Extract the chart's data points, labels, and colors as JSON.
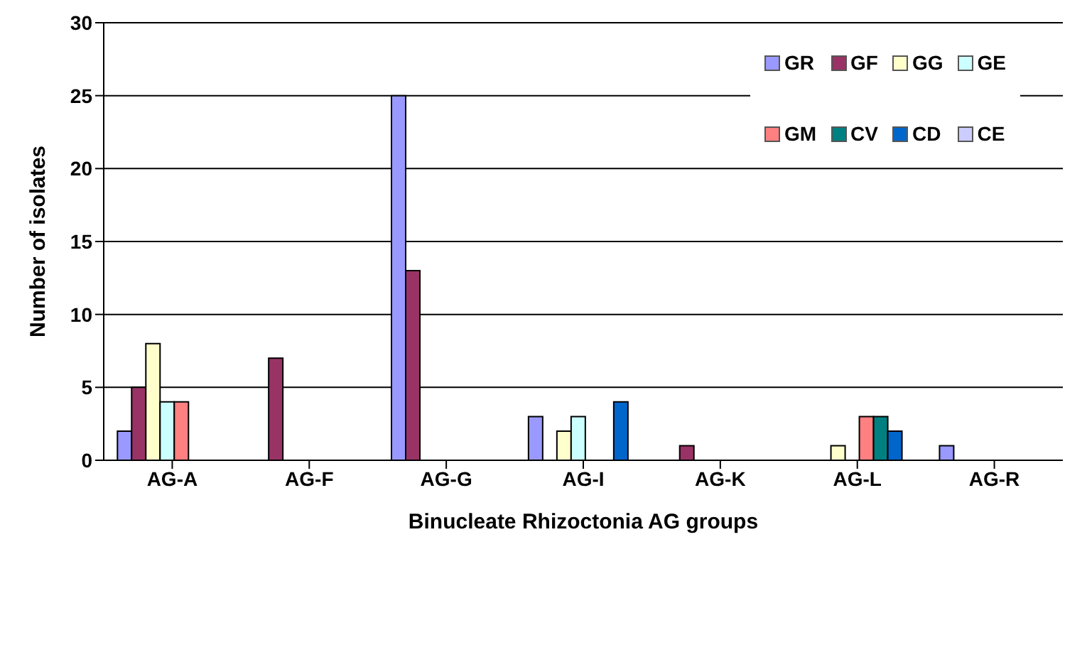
{
  "chart_data": {
    "type": "bar",
    "xlabel": "Binucleate Rhizoctonia AG groups",
    "ylabel": "Number of isolates",
    "categories": [
      "AG-A",
      "AG-F",
      "AG-G",
      "AG-I",
      "AG-K",
      "AG-L",
      "AG-R"
    ],
    "series": [
      {
        "name": "GR",
        "color": "#9999ff",
        "values": [
          2,
          0,
          25,
          3,
          0,
          0,
          1
        ]
      },
      {
        "name": "GF",
        "color": "#993366",
        "values": [
          5,
          7,
          13,
          0,
          1,
          0,
          0
        ]
      },
      {
        "name": "GG",
        "color": "#ffffcc",
        "values": [
          8,
          0,
          0,
          2,
          0,
          1,
          0
        ]
      },
      {
        "name": "GE",
        "color": "#ccffff",
        "values": [
          4,
          0,
          0,
          3,
          0,
          0,
          0
        ]
      },
      {
        "name": "GM",
        "color": "#ff8080",
        "values": [
          4,
          0,
          0,
          0,
          0,
          3,
          0
        ]
      },
      {
        "name": "CV",
        "color": "#008080",
        "values": [
          0,
          0,
          0,
          0,
          0,
          3,
          0
        ]
      },
      {
        "name": "CD",
        "color": "#0066cc",
        "values": [
          0,
          0,
          0,
          4,
          0,
          2,
          0
        ]
      },
      {
        "name": "CE",
        "color": "#ccccff",
        "values": [
          0,
          0,
          0,
          0,
          0,
          0,
          0
        ]
      }
    ],
    "ylim": [
      0,
      30
    ],
    "yticks": [
      0,
      5,
      10,
      15,
      20,
      25,
      30
    ],
    "grid": "y",
    "legend": "top right"
  }
}
